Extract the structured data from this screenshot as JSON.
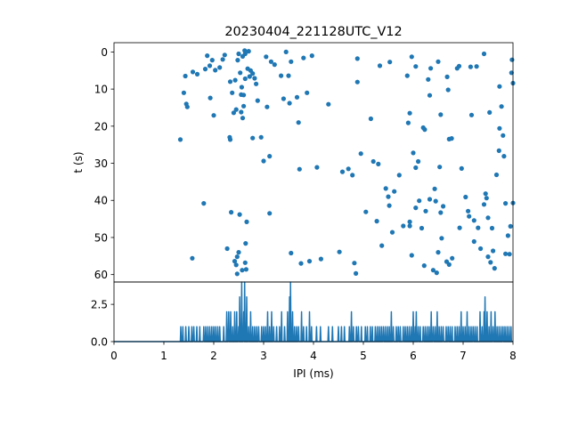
{
  "figure": {
    "title": "20230404_221128UTC_V12"
  },
  "chart_data": [
    {
      "type": "scatter",
      "panel": "top",
      "title": "20230404_221128UTC_V12",
      "xlabel": "",
      "ylabel": "t (s)",
      "xlim": [
        0,
        8
      ],
      "ylim": [
        62,
        -2.5
      ],
      "y_inverted": true,
      "yticks": [
        0,
        10,
        20,
        30,
        40,
        50,
        60
      ],
      "ytick_labels": [
        "0",
        "10",
        "20",
        "30",
        "40",
        "50",
        "60"
      ],
      "x_ticklabels_shown": false,
      "grid": false,
      "color": "#1f77b4",
      "points": [
        [
          1.33,
          23.6
        ],
        [
          1.4,
          11
        ],
        [
          1.43,
          6.5
        ],
        [
          1.45,
          14
        ],
        [
          1.47,
          14.8
        ],
        [
          1.57,
          55.6
        ],
        [
          1.58,
          5.4
        ],
        [
          1.67,
          6
        ],
        [
          1.8,
          40.8
        ],
        [
          1.83,
          4.6
        ],
        [
          1.87,
          1
        ],
        [
          1.92,
          3.7
        ],
        [
          1.93,
          12.4
        ],
        [
          1.97,
          2.2
        ],
        [
          2.0,
          17.1
        ],
        [
          2.03,
          4.9
        ],
        [
          2.12,
          4.2
        ],
        [
          2.18,
          2
        ],
        [
          2.22,
          0.8
        ],
        [
          2.27,
          53
        ],
        [
          2.32,
          23
        ],
        [
          2.33,
          23.6
        ],
        [
          2.33,
          8
        ],
        [
          2.35,
          43.2
        ],
        [
          2.37,
          11
        ],
        [
          2.4,
          16.4
        ],
        [
          2.42,
          56.4
        ],
        [
          2.43,
          7.6
        ],
        [
          2.45,
          15.5
        ],
        [
          2.45,
          57.4
        ],
        [
          2.47,
          55.2
        ],
        [
          2.47,
          59.8
        ],
        [
          2.48,
          2.2
        ],
        [
          2.5,
          0.5
        ],
        [
          2.5,
          54
        ],
        [
          2.52,
          43.8
        ],
        [
          2.53,
          5.6
        ],
        [
          2.55,
          11.5
        ],
        [
          2.55,
          16.2
        ],
        [
          2.56,
          9.5
        ],
        [
          2.57,
          58.8
        ],
        [
          2.58,
          17.8
        ],
        [
          2.58,
          1.2
        ],
        [
          2.6,
          11.6
        ],
        [
          2.6,
          14.6
        ],
        [
          2.62,
          -0.4
        ],
        [
          2.63,
          0.5
        ],
        [
          2.63,
          7.2
        ],
        [
          2.63,
          56.8
        ],
        [
          2.64,
          51.6
        ],
        [
          2.65,
          58.6
        ],
        [
          2.66,
          45.8
        ],
        [
          2.68,
          4.5
        ],
        [
          2.7,
          -0.2
        ],
        [
          2.72,
          6.6
        ],
        [
          2.74,
          5
        ],
        [
          2.78,
          23.2
        ],
        [
          2.78,
          5.8
        ],
        [
          2.82,
          7.1
        ],
        [
          2.85,
          8.6
        ],
        [
          2.88,
          13.1
        ],
        [
          2.95,
          23
        ],
        [
          3.0,
          29.4
        ],
        [
          3.05,
          1.3
        ],
        [
          3.07,
          14.8
        ],
        [
          3.12,
          28.1
        ],
        [
          3.12,
          43.5
        ],
        [
          3.15,
          2.6
        ],
        [
          3.22,
          3.4
        ],
        [
          3.35,
          6.4
        ],
        [
          3.4,
          12.6
        ],
        [
          3.45,
          0
        ],
        [
          3.5,
          6.4
        ],
        [
          3.52,
          13.8
        ],
        [
          3.55,
          2.6
        ],
        [
          3.55,
          54.2
        ],
        [
          3.67,
          12.2
        ],
        [
          3.7,
          19
        ],
        [
          3.72,
          31.6
        ],
        [
          3.75,
          57
        ],
        [
          3.8,
          1.6
        ],
        [
          3.87,
          11
        ],
        [
          3.92,
          56.4
        ],
        [
          3.97,
          1
        ],
        [
          4.07,
          31.1
        ],
        [
          4.15,
          55.8
        ],
        [
          4.3,
          14.1
        ],
        [
          4.52,
          53.9
        ],
        [
          4.58,
          32.3
        ],
        [
          4.7,
          31.5
        ],
        [
          4.78,
          33.2
        ],
        [
          4.82,
          56.9
        ],
        [
          4.85,
          59.7
        ],
        [
          4.88,
          1.8
        ],
        [
          4.88,
          8.1
        ],
        [
          4.95,
          27.4
        ],
        [
          5.05,
          43.1
        ],
        [
          5.15,
          18
        ],
        [
          5.2,
          29.5
        ],
        [
          5.27,
          45.6
        ],
        [
          5.3,
          30.2
        ],
        [
          5.33,
          3.7
        ],
        [
          5.37,
          52.2
        ],
        [
          5.45,
          36.8
        ],
        [
          5.5,
          39
        ],
        [
          5.52,
          41.4
        ],
        [
          5.53,
          2.7
        ],
        [
          5.58,
          48.6
        ],
        [
          5.62,
          37.6
        ],
        [
          5.72,
          33.2
        ],
        [
          5.8,
          46.9
        ],
        [
          5.88,
          6.4
        ],
        [
          5.9,
          19.1
        ],
        [
          5.93,
          45.8
        ],
        [
          5.93,
          16.5
        ],
        [
          5.93,
          46.9
        ],
        [
          5.97,
          1.3
        ],
        [
          5.97,
          54.8
        ],
        [
          6.0,
          27.2
        ],
        [
          6.05,
          3.9
        ],
        [
          6.05,
          42
        ],
        [
          6.05,
          31.2
        ],
        [
          6.1,
          29.5
        ],
        [
          6.12,
          40.1
        ],
        [
          6.17,
          47.5
        ],
        [
          6.2,
          20.4
        ],
        [
          6.22,
          57.6
        ],
        [
          6.23,
          20.9
        ],
        [
          6.25,
          42.9
        ],
        [
          6.3,
          7.4
        ],
        [
          6.33,
          11.7
        ],
        [
          6.33,
          39.7
        ],
        [
          6.35,
          4.4
        ],
        [
          6.4,
          58.8
        ],
        [
          6.43,
          36.9
        ],
        [
          6.45,
          40.2
        ],
        [
          6.47,
          59.5
        ],
        [
          6.5,
          2.6
        ],
        [
          6.5,
          54
        ],
        [
          6.53,
          31
        ],
        [
          6.55,
          16.9
        ],
        [
          6.55,
          43.3
        ],
        [
          6.57,
          50.2
        ],
        [
          6.6,
          41.6
        ],
        [
          6.67,
          56.5
        ],
        [
          6.68,
          6.7
        ],
        [
          6.7,
          10.2
        ],
        [
          6.72,
          23.5
        ],
        [
          6.72,
          57.3
        ],
        [
          6.77,
          23.3
        ],
        [
          6.78,
          55.6
        ],
        [
          6.88,
          4.4
        ],
        [
          6.92,
          3.8
        ],
        [
          6.93,
          47.4
        ],
        [
          6.97,
          31.4
        ],
        [
          7.05,
          39.1
        ],
        [
          7.1,
          42.9
        ],
        [
          7.12,
          44.3
        ],
        [
          7.15,
          4
        ],
        [
          7.17,
          17
        ],
        [
          7.22,
          51.1
        ],
        [
          7.22,
          45.4
        ],
        [
          7.27,
          3.9
        ],
        [
          7.3,
          47.4
        ],
        [
          7.35,
          53
        ],
        [
          7.42,
          0.5
        ],
        [
          7.42,
          41.1
        ],
        [
          7.45,
          38.2
        ],
        [
          7.47,
          39.4
        ],
        [
          7.5,
          55.2
        ],
        [
          7.5,
          44.7
        ],
        [
          7.53,
          16.3
        ],
        [
          7.55,
          56.7
        ],
        [
          7.58,
          47.5
        ],
        [
          7.6,
          53.6
        ],
        [
          7.63,
          58.3
        ],
        [
          7.67,
          33.1
        ],
        [
          7.72,
          26.6
        ],
        [
          7.73,
          9.3
        ],
        [
          7.73,
          20.6
        ],
        [
          7.77,
          14.7
        ],
        [
          7.8,
          22.5
        ],
        [
          7.82,
          28.1
        ],
        [
          7.85,
          40.8
        ],
        [
          7.85,
          54.4
        ],
        [
          7.9,
          49.5
        ],
        [
          7.93,
          54.5
        ],
        [
          7.95,
          47
        ],
        [
          7.97,
          5.6
        ],
        [
          7.98,
          2.1
        ],
        [
          8.0,
          40.7
        ],
        [
          8.0,
          8.4
        ]
      ]
    },
    {
      "type": "line",
      "panel": "bottom",
      "xlabel": "IPI (ms)",
      "ylabel": "",
      "xlim": [
        0,
        8
      ],
      "ylim": [
        0,
        4
      ],
      "xticks": [
        0,
        1,
        2,
        3,
        4,
        5,
        6,
        7,
        8
      ],
      "xtick_labels": [
        "0",
        "1",
        "2",
        "3",
        "4",
        "5",
        "6",
        "7",
        "8"
      ],
      "yticks": [
        0,
        2.5
      ],
      "ytick_labels": [
        "0.0",
        "2.5"
      ],
      "grid": false,
      "color": "#1f77b4",
      "bin_width": 0.02,
      "spikes": [
        [
          1.34,
          1
        ],
        [
          1.38,
          1
        ],
        [
          1.44,
          1
        ],
        [
          1.5,
          1
        ],
        [
          1.56,
          1
        ],
        [
          1.6,
          1
        ],
        [
          1.66,
          1
        ],
        [
          1.72,
          1
        ],
        [
          1.8,
          1
        ],
        [
          1.84,
          1
        ],
        [
          1.88,
          1
        ],
        [
          1.92,
          1
        ],
        [
          1.96,
          1
        ],
        [
          2.0,
          1
        ],
        [
          2.04,
          1
        ],
        [
          2.08,
          1
        ],
        [
          2.12,
          1
        ],
        [
          2.2,
          1
        ],
        [
          2.26,
          2
        ],
        [
          2.3,
          2
        ],
        [
          2.34,
          2
        ],
        [
          2.38,
          1
        ],
        [
          2.42,
          2
        ],
        [
          2.46,
          2
        ],
        [
          2.5,
          1
        ],
        [
          2.52,
          3
        ],
        [
          2.56,
          4
        ],
        [
          2.6,
          2
        ],
        [
          2.62,
          4
        ],
        [
          2.66,
          3
        ],
        [
          2.7,
          1
        ],
        [
          2.74,
          2
        ],
        [
          2.78,
          1
        ],
        [
          2.82,
          1
        ],
        [
          2.86,
          1
        ],
        [
          2.9,
          1
        ],
        [
          2.96,
          1
        ],
        [
          3.0,
          1
        ],
        [
          3.04,
          1
        ],
        [
          3.08,
          2
        ],
        [
          3.12,
          1
        ],
        [
          3.16,
          2
        ],
        [
          3.2,
          1
        ],
        [
          3.26,
          1
        ],
        [
          3.32,
          1
        ],
        [
          3.36,
          2
        ],
        [
          3.42,
          1
        ],
        [
          3.48,
          2
        ],
        [
          3.52,
          3
        ],
        [
          3.54,
          4
        ],
        [
          3.58,
          2
        ],
        [
          3.62,
          1
        ],
        [
          3.66,
          1
        ],
        [
          3.7,
          1
        ],
        [
          3.76,
          2
        ],
        [
          3.8,
          1
        ],
        [
          3.86,
          1
        ],
        [
          3.92,
          2
        ],
        [
          3.96,
          1
        ],
        [
          4.06,
          1
        ],
        [
          4.14,
          1
        ],
        [
          4.3,
          1
        ],
        [
          4.38,
          1
        ],
        [
          4.5,
          1
        ],
        [
          4.56,
          1
        ],
        [
          4.62,
          1
        ],
        [
          4.72,
          1
        ],
        [
          4.76,
          2
        ],
        [
          4.8,
          1
        ],
        [
          4.86,
          1
        ],
        [
          4.9,
          1
        ],
        [
          4.96,
          1
        ],
        [
          5.04,
          1
        ],
        [
          5.08,
          1
        ],
        [
          5.14,
          1
        ],
        [
          5.18,
          1
        ],
        [
          5.24,
          1
        ],
        [
          5.28,
          1
        ],
        [
          5.32,
          1
        ],
        [
          5.36,
          1
        ],
        [
          5.4,
          1
        ],
        [
          5.44,
          1
        ],
        [
          5.48,
          1
        ],
        [
          5.52,
          1
        ],
        [
          5.56,
          2
        ],
        [
          5.6,
          1
        ],
        [
          5.66,
          1
        ],
        [
          5.7,
          1
        ],
        [
          5.74,
          1
        ],
        [
          5.8,
          1
        ],
        [
          5.84,
          1
        ],
        [
          5.88,
          1
        ],
        [
          5.92,
          1
        ],
        [
          5.96,
          1
        ],
        [
          6.0,
          2
        ],
        [
          6.04,
          1
        ],
        [
          6.06,
          2
        ],
        [
          6.1,
          1
        ],
        [
          6.14,
          1
        ],
        [
          6.2,
          1
        ],
        [
          6.24,
          1
        ],
        [
          6.28,
          1
        ],
        [
          6.32,
          1
        ],
        [
          6.36,
          2
        ],
        [
          6.4,
          1
        ],
        [
          6.44,
          1
        ],
        [
          6.48,
          2
        ],
        [
          6.52,
          1
        ],
        [
          6.56,
          1
        ],
        [
          6.6,
          1
        ],
        [
          6.66,
          1
        ],
        [
          6.7,
          1
        ],
        [
          6.74,
          1
        ],
        [
          6.78,
          1
        ],
        [
          6.84,
          1
        ],
        [
          6.88,
          1
        ],
        [
          6.92,
          1
        ],
        [
          6.96,
          2
        ],
        [
          7.0,
          1
        ],
        [
          7.04,
          1
        ],
        [
          7.08,
          2
        ],
        [
          7.12,
          1
        ],
        [
          7.16,
          1
        ],
        [
          7.2,
          1
        ],
        [
          7.24,
          1
        ],
        [
          7.28,
          1
        ],
        [
          7.34,
          2
        ],
        [
          7.38,
          1
        ],
        [
          7.42,
          2
        ],
        [
          7.44,
          3
        ],
        [
          7.48,
          2
        ],
        [
          7.52,
          1
        ],
        [
          7.56,
          2
        ],
        [
          7.6,
          1
        ],
        [
          7.64,
          2
        ],
        [
          7.68,
          1
        ],
        [
          7.72,
          1
        ],
        [
          7.76,
          1
        ],
        [
          7.8,
          1
        ],
        [
          7.84,
          1
        ],
        [
          7.88,
          1
        ],
        [
          7.92,
          1
        ],
        [
          7.96,
          1
        ]
      ]
    }
  ]
}
